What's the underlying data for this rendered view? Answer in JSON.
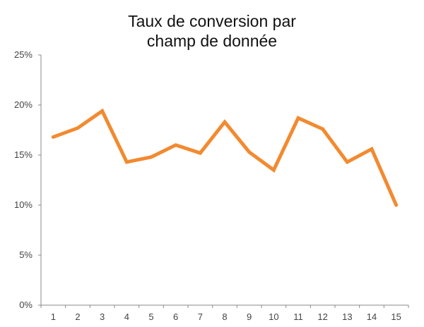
{
  "chart_data": {
    "type": "line",
    "title_lines": [
      "Taux de conversion par",
      "champ de donnée"
    ],
    "xlabel": "",
    "ylabel": "",
    "categories": [
      "1",
      "2",
      "3",
      "4",
      "5",
      "6",
      "7",
      "8",
      "9",
      "10",
      "11",
      "12",
      "13",
      "14",
      "15"
    ],
    "series": [
      {
        "values": [
          16.8,
          17.7,
          19.4,
          14.3,
          14.8,
          16.0,
          15.2,
          18.3,
          15.3,
          13.5,
          18.7,
          17.6,
          14.3,
          15.6,
          10.0
        ],
        "color": "#f28a30"
      }
    ],
    "ylim": [
      0,
      25
    ],
    "yticks": [
      0,
      5,
      10,
      15,
      20,
      25
    ],
    "ytick_labels": [
      "0%",
      "5%",
      "10%",
      "15%",
      "20%",
      "25%"
    ],
    "grid": false,
    "legend": "none",
    "axis_color": "#888888"
  }
}
